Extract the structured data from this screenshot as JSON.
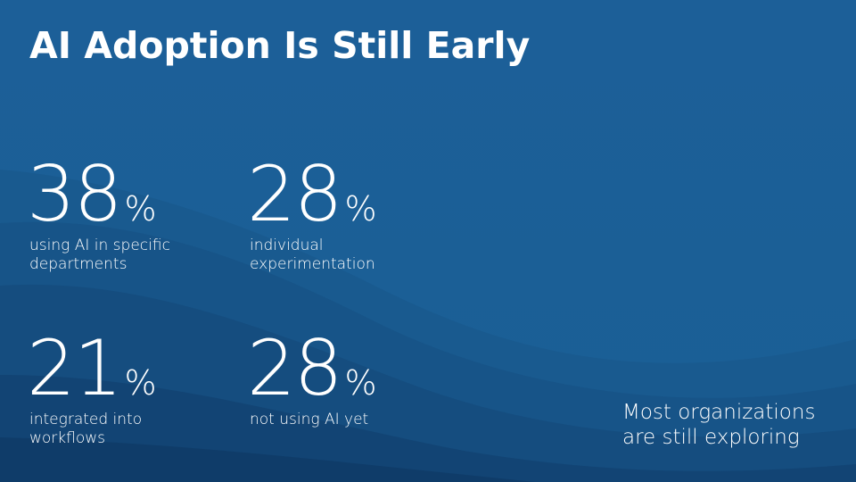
{
  "title": "AI Adoption Is Still Early",
  "stats": [
    {
      "value": "38",
      "unit": "%",
      "description": [
        "using AI in specific",
        "departments"
      ]
    },
    {
      "value": "28",
      "unit": "%",
      "description": [
        "individual",
        "experimentation"
      ]
    },
    {
      "value": "21",
      "unit": "%",
      "description": [
        "integrated into",
        "workflows"
      ]
    },
    {
      "value": "28",
      "unit": "%",
      "description": [
        "not using AI yet"
      ]
    }
  ],
  "note": [
    "Most organizations",
    "are still exploring"
  ]
}
